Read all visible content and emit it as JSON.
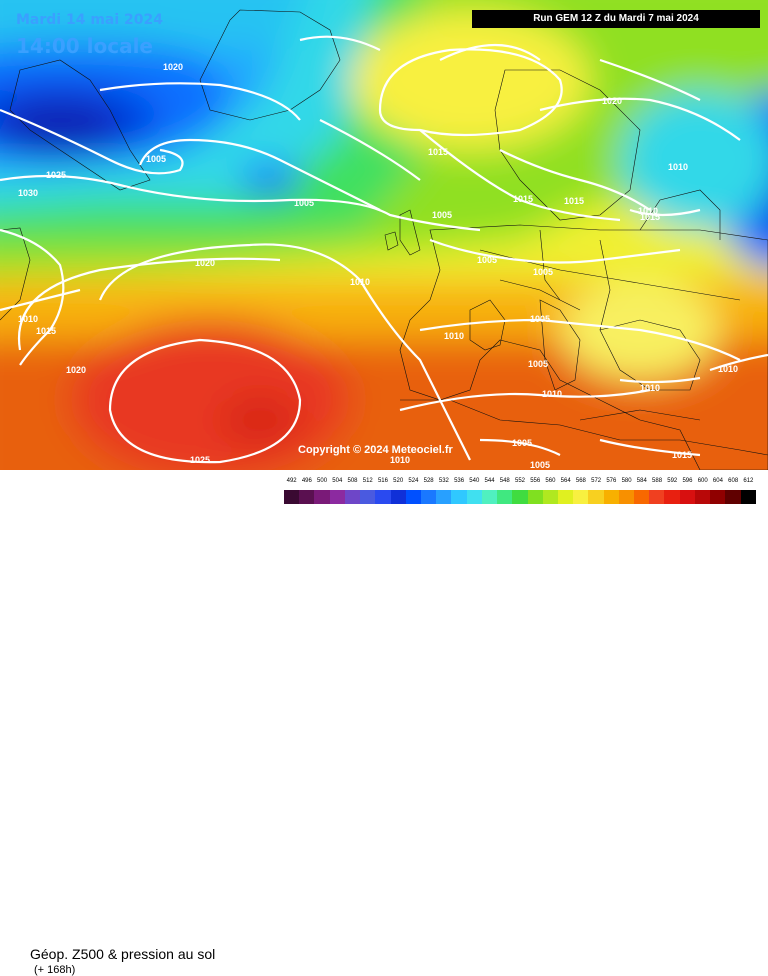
{
  "header": {
    "date": "Mardi 14 mai 2024",
    "local_time": "14:00 locale",
    "run": "Run GEM 12 Z du Mardi 7 mai 2024"
  },
  "copyright": "Copyright © 2024 Meteociel.fr",
  "legend": {
    "title": "Géop. Z500 & pression au sol",
    "subtitle": "(+ 168h)",
    "scale_values": [
      "492",
      "496",
      "500",
      "504",
      "508",
      "512",
      "516",
      "520",
      "524",
      "528",
      "532",
      "536",
      "540",
      "544",
      "548",
      "552",
      "556",
      "560",
      "564",
      "568",
      "572",
      "576",
      "580",
      "584",
      "588",
      "592",
      "596",
      "600",
      "604",
      "608",
      "612"
    ],
    "scale_colors": [
      "#3a0a32",
      "#5a1050",
      "#7a1a78",
      "#8c2aa0",
      "#6e46c8",
      "#4a5ae0",
      "#2a4af0",
      "#1030d8",
      "#0050ff",
      "#1a78ff",
      "#28a0ff",
      "#30c8ff",
      "#40e0f0",
      "#50f0c0",
      "#40e880",
      "#40dc40",
      "#80e020",
      "#b0e820",
      "#e0f020",
      "#f8f040",
      "#f8d020",
      "#f8b000",
      "#f89000",
      "#f86800",
      "#f04020",
      "#e82010",
      "#d81010",
      "#b80808",
      "#900000",
      "#600000",
      "#000000"
    ]
  },
  "isobar_labels": [
    {
      "text": "1020"
    },
    {
      "text": "1025"
    },
    {
      "text": "1005"
    },
    {
      "text": "1030"
    },
    {
      "text": "1005"
    },
    {
      "text": "1020"
    },
    {
      "text": "1010"
    },
    {
      "text": "1010"
    },
    {
      "text": "1015"
    },
    {
      "text": "1020"
    },
    {
      "text": "1015"
    },
    {
      "text": "1005"
    },
    {
      "text": "1015"
    },
    {
      "text": "1015"
    },
    {
      "text": "1020"
    },
    {
      "text": "1010"
    },
    {
      "text": "1015"
    },
    {
      "text": "1005"
    },
    {
      "text": "1005"
    },
    {
      "text": "1005"
    },
    {
      "text": "1010"
    },
    {
      "text": "1005"
    },
    {
      "text": "1010"
    },
    {
      "text": "1010"
    },
    {
      "text": "1010"
    },
    {
      "text": "1005"
    },
    {
      "text": "1005"
    },
    {
      "text": "1015"
    },
    {
      "text": "1025"
    },
    {
      "text": "1010"
    },
    {
      "text": "1010"
    }
  ]
}
